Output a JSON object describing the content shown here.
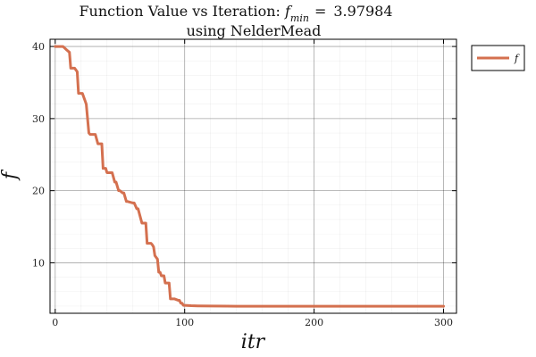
{
  "chart_data": {
    "type": "line",
    "title_line1_prefix": "Function Value vs Iteration: ",
    "title_symbol": "f",
    "title_subscript": "min",
    "title_eq": "=",
    "title_value": "3.97984",
    "title_line2": "using NelderMead",
    "xlabel": "itr",
    "ylabel": "f",
    "xlim": [
      -4,
      310
    ],
    "ylim": [
      3,
      41
    ],
    "xticks": [
      0,
      100,
      200,
      300
    ],
    "yticks": [
      10,
      20,
      30,
      40
    ],
    "grid": true,
    "minor_grid": true,
    "legend_position": "outer-top-right",
    "series": [
      {
        "name": "f",
        "color": "#d4704f",
        "x": [
          0,
          3,
          6,
          9,
          11,
          12,
          15,
          17,
          18,
          20,
          21,
          23,
          24,
          26,
          27,
          30,
          31,
          33,
          34,
          36,
          37,
          39,
          40,
          43,
          44,
          46,
          47,
          49,
          50,
          52,
          53,
          55,
          56,
          60,
          61,
          63,
          64,
          67,
          68,
          70,
          71,
          74,
          75,
          76,
          77,
          79,
          80,
          81,
          82,
          84,
          85,
          86,
          87,
          88,
          89,
          91,
          92,
          95,
          96,
          97,
          98,
          99,
          100,
          105,
          110,
          120,
          140,
          200,
          250,
          300
        ],
        "y": [
          40,
          40,
          40,
          39.5,
          39.2,
          37,
          37,
          36.5,
          33.5,
          33.5,
          33.5,
          32.5,
          32,
          28,
          27.8,
          27.8,
          27.8,
          26.5,
          26.5,
          26.5,
          23.1,
          23.1,
          22.5,
          22.5,
          22.5,
          21.2,
          21.2,
          20,
          20,
          19.7,
          19.7,
          18.5,
          18.5,
          18.3,
          18.3,
          17.5,
          17.5,
          15.5,
          15.5,
          15.5,
          12.7,
          12.7,
          12.5,
          12.2,
          11,
          10.5,
          8.7,
          8.7,
          8.2,
          8.2,
          7.2,
          7.2,
          7.2,
          7.2,
          5,
          5,
          5,
          4.8,
          4.8,
          4.4,
          4.4,
          4.1,
          4.1,
          4.05,
          4.02,
          4.0,
          3.98,
          3.98,
          3.98,
          3.98
        ]
      }
    ]
  }
}
